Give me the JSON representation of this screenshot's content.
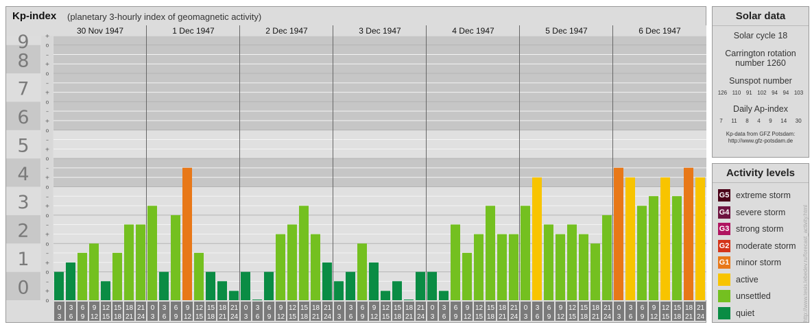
{
  "header": {
    "title": "Kp-index",
    "subtitle": "(planetary 3-hourly index of geomagnetic activity)"
  },
  "colors": {
    "extreme": "#4a0018",
    "severe": "#6e1440",
    "strong": "#b01460",
    "moderate": "#d4341a",
    "minor": "#e87818",
    "active": "#f8c400",
    "unsettled": "#74c020",
    "quiet": "#0a8c44"
  },
  "chart_data": {
    "type": "bar",
    "y_tick_labels": [
      "0",
      "1",
      "2",
      "3",
      "4",
      "5",
      "6",
      "7",
      "8",
      "9"
    ],
    "y_minor_labels": [
      "–",
      "o",
      "+"
    ],
    "ylim": [
      0,
      9.33
    ],
    "days": [
      "30 Nov 1947",
      "1 Dec 1947",
      "2 Dec 1947",
      "3 Dec 1947",
      "4 Dec 1947",
      "5 Dec 1947",
      "6 Dec 1947"
    ],
    "hour_labels_top": [
      "0",
      "3",
      "6",
      "9",
      "12",
      "15",
      "18",
      "21"
    ],
    "hour_labels_bottom": [
      "3",
      "6",
      "9",
      "12",
      "15",
      "18",
      "21",
      "24"
    ],
    "values": [
      [
        1.0,
        1.33,
        1.67,
        2.0,
        0.67,
        1.67,
        2.67,
        2.67
      ],
      [
        3.33,
        1.0,
        3.0,
        4.67,
        1.67,
        1.0,
        0.67,
        0.33
      ],
      [
        1.0,
        0.0,
        1.0,
        2.33,
        2.67,
        3.33,
        2.33,
        1.33
      ],
      [
        0.67,
        1.0,
        2.0,
        1.33,
        0.33,
        0.67,
        0.0,
        1.0
      ],
      [
        1.0,
        0.33,
        2.67,
        1.67,
        2.33,
        3.33,
        2.33,
        2.33
      ],
      [
        3.33,
        4.33,
        2.67,
        2.33,
        2.67,
        2.33,
        2.0,
        3.0
      ],
      [
        4.67,
        4.33,
        3.33,
        3.67,
        4.33,
        3.67,
        4.67,
        4.33
      ]
    ]
  },
  "solar": {
    "heading": "Solar data",
    "cycle": "Solar cycle 18",
    "carrington_line1": "Carrington rotation",
    "carrington_line2": "number 1260",
    "sunspot_heading": "Sunspot number",
    "sunspots": [
      "126",
      "110",
      "91",
      "102",
      "94",
      "94",
      "103"
    ],
    "ap_heading": "Daily Ap-index",
    "ap": [
      "7",
      "11",
      "8",
      "4",
      "9",
      "14",
      "30"
    ],
    "credit_line1": "Kp-data from GFZ Potsdam:",
    "credit_line2": "http://www.gfz-potsdam.de"
  },
  "levels": {
    "heading": "Activity levels",
    "items": [
      {
        "code": "G5",
        "label": "extreme storm",
        "color": "#4a0018"
      },
      {
        "code": "G4",
        "label": "severe storm",
        "color": "#6e1440"
      },
      {
        "code": "G3",
        "label": "strong storm",
        "color": "#b01460"
      },
      {
        "code": "G2",
        "label": "moderate storm",
        "color": "#d4341a"
      },
      {
        "code": "G1",
        "label": "minor storm",
        "color": "#e87818"
      },
      {
        "code": "",
        "label": "active",
        "color": "#f8c400"
      },
      {
        "code": "",
        "label": "unsettled",
        "color": "#74c020"
      },
      {
        "code": "",
        "label": "quiet",
        "color": "#0a8c44"
      }
    ]
  },
  "watermark": "http://www.tesis.lebedev.ru/forecast_activity.html"
}
